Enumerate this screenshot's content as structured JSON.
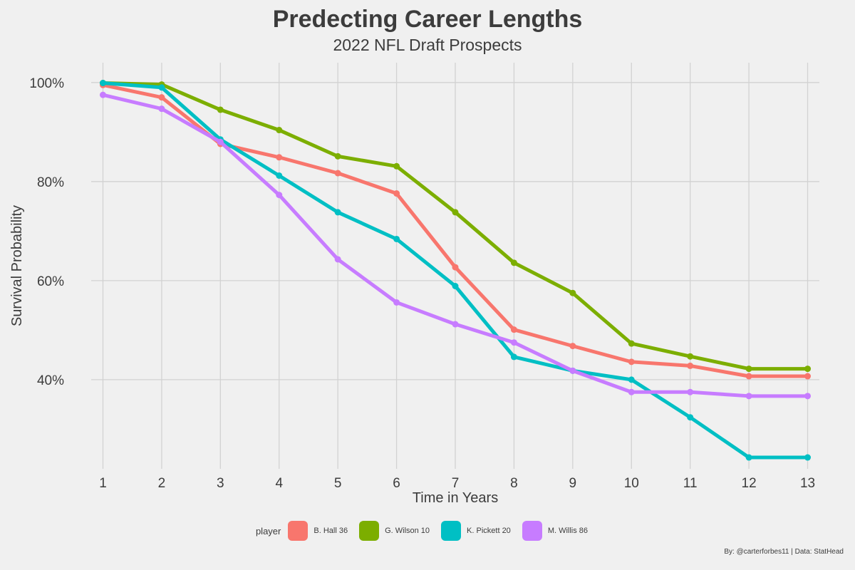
{
  "chart_data": {
    "type": "line",
    "title": "Predecting Career Lengths",
    "subtitle": "2022 NFL Draft Prospects",
    "xlabel": "Time in Years",
    "ylabel": "Survival Probability",
    "x": [
      1,
      2,
      3,
      4,
      5,
      6,
      7,
      8,
      9,
      10,
      11,
      12,
      13
    ],
    "xlim": [
      0.8,
      13.2
    ],
    "ylim": [
      0.22,
      1.04
    ],
    "y_ticks": [
      0.4,
      0.6,
      0.8,
      1.0
    ],
    "y_tick_labels": [
      "40%",
      "60%",
      "80%",
      "100%"
    ],
    "grid": true,
    "legend_title": "player",
    "legend_position": "bottom",
    "series": [
      {
        "name": "B. Hall 36",
        "color": "#f8766d",
        "values": [
          0.995,
          0.97,
          0.876,
          0.849,
          0.817,
          0.776,
          0.627,
          0.501,
          0.468,
          0.436,
          0.428,
          0.407,
          0.407
        ]
      },
      {
        "name": "G. Wilson 10",
        "color": "#7cae00",
        "values": [
          0.999,
          0.996,
          0.945,
          0.904,
          0.851,
          0.831,
          0.738,
          0.636,
          0.575,
          0.473,
          0.447,
          0.422,
          0.422
        ]
      },
      {
        "name": "K. Pickett 20",
        "color": "#00bfc4",
        "values": [
          0.999,
          0.99,
          0.885,
          0.812,
          0.738,
          0.684,
          0.589,
          0.446,
          0.418,
          0.4,
          0.324,
          0.243,
          0.243
        ]
      },
      {
        "name": "M. Willis 86",
        "color": "#c77cff",
        "values": [
          0.975,
          0.947,
          0.88,
          0.773,
          0.643,
          0.556,
          0.512,
          0.475,
          0.418,
          0.375,
          0.375,
          0.367,
          0.367
        ]
      }
    ]
  },
  "caption": "By: @carterforbes11 | Data: StatHead"
}
